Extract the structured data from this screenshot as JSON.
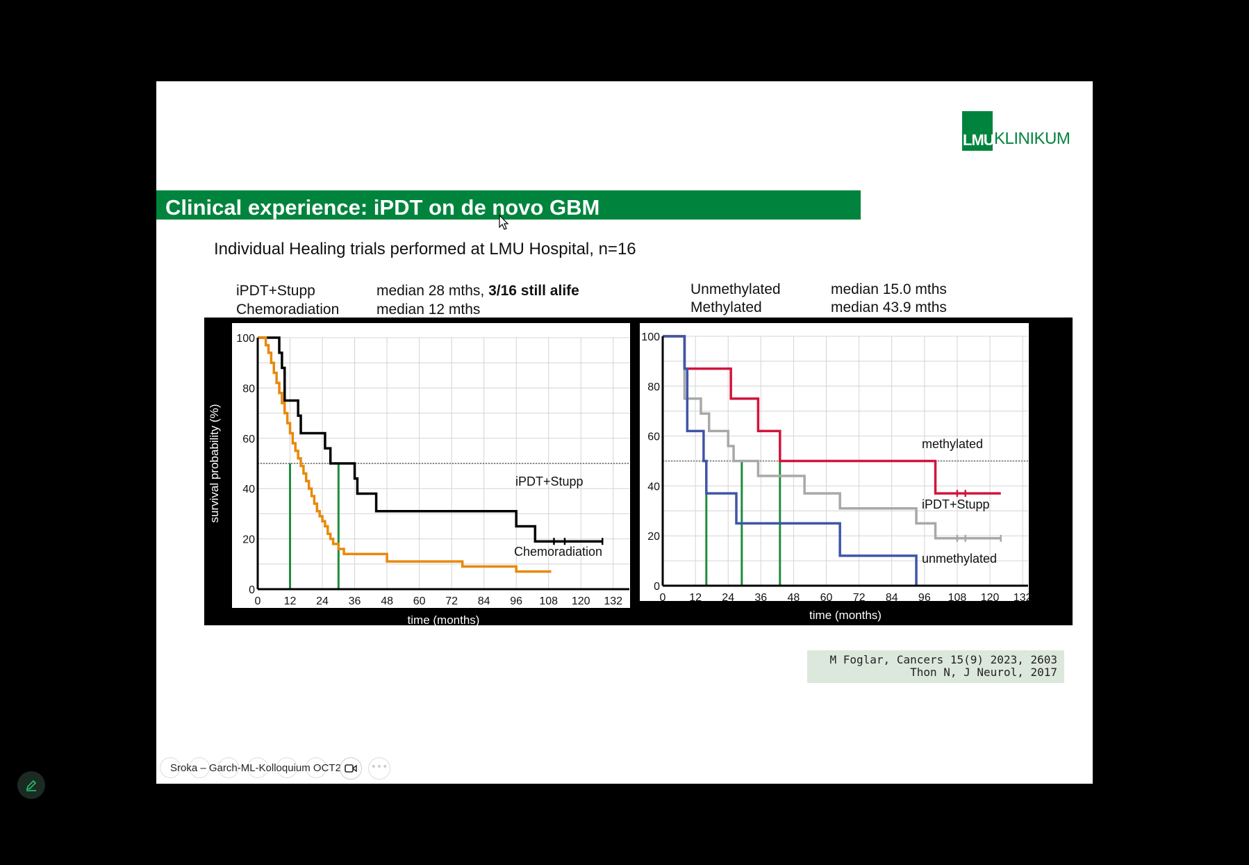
{
  "logo": {
    "box_text": "LMU",
    "word": "KLINIKUM"
  },
  "slide": {
    "title": "Clinical experience: iPDT on de novo GBM",
    "subtitle": "Individual Healing trials performed at LMU Hospital, n=16",
    "left_legend": {
      "row1_name": "iPDT+Stupp",
      "row1_value": "median 28 mths,",
      "row1_bold": "3/16 still alife",
      "row2_name": "Chemoradiation",
      "row2_value": "median 12 mths"
    },
    "right_legend": {
      "row1_name": "Unmethylated",
      "row1_value": "median 15.0 mths",
      "row2_name": "Methylated",
      "row2_value": "median 43.9 mths"
    },
    "citation": {
      "line1": "M Foglar, Cancers 15(9) 2023, 2603",
      "line2": "Thon N, J Neurol, 2017"
    }
  },
  "toolbar": {
    "label": "Sroka – Garch-ML-Kolloquium OCT2"
  },
  "colors": {
    "brand_green": "#00843D",
    "ipdt": "#000000",
    "chemo": "#E8890C",
    "methylated": "#D2143C",
    "unmethylated": "#3F55A8",
    "ipdt_gray": "#A8A8A8",
    "median_line": "#1E8C3C"
  },
  "chart_data": [
    {
      "type": "line",
      "step": true,
      "xlabel": "time (months)",
      "ylabel": "survival probability (%)",
      "xlim": [
        0,
        138
      ],
      "ylim": [
        0,
        100
      ],
      "xticks": [
        0,
        12,
        24,
        36,
        48,
        60,
        72,
        84,
        96,
        108,
        120,
        132
      ],
      "yticks": [
        0,
        20,
        40,
        60,
        80,
        100
      ],
      "reference_line_y": 50,
      "median_markers_x": [
        12,
        30
      ],
      "series": [
        {
          "name": "iPDT+Stupp",
          "color": "#000000",
          "censored_x": [
            110,
            114,
            128
          ],
          "x": [
            0,
            5,
            8,
            9,
            10,
            15,
            16,
            25,
            27,
            29,
            36,
            37,
            44,
            66,
            96,
            103,
            128
          ],
          "y": [
            100,
            100,
            94,
            88,
            75,
            69,
            62,
            56,
            50,
            50,
            44,
            38,
            31,
            31,
            25,
            19,
            19
          ]
        },
        {
          "name": "Chemoradiation",
          "color": "#E8890C",
          "censored_x": [],
          "x": [
            0,
            2,
            3,
            4,
            5,
            6,
            7,
            8,
            9,
            10,
            11,
            12,
            13,
            14,
            15,
            16,
            17,
            18,
            19,
            20,
            21,
            22,
            23,
            24,
            25,
            26,
            27,
            28,
            30,
            32,
            47,
            48,
            76,
            96,
            109
          ],
          "y": [
            100,
            100,
            97,
            94,
            90,
            86,
            82,
            78,
            74,
            70,
            66,
            62,
            58,
            55,
            52,
            49,
            46,
            43,
            40,
            37,
            34,
            31,
            29,
            27,
            25,
            22,
            20,
            18,
            16,
            14,
            14,
            11,
            9,
            7,
            7
          ]
        }
      ]
    },
    {
      "type": "line",
      "step": true,
      "xlabel": "time (months)",
      "ylabel": "survival probability (%)",
      "xlim": [
        0,
        134
      ],
      "ylim": [
        0,
        100
      ],
      "xticks": [
        0,
        12,
        24,
        36,
        48,
        60,
        72,
        84,
        96,
        108,
        120,
        132
      ],
      "yticks": [
        0,
        20,
        40,
        60,
        80,
        100
      ],
      "reference_line_y": 50,
      "median_markers_x": [
        16,
        29,
        43
      ],
      "annotations": [
        "methylated",
        "iPDT+Stupp",
        "unmethylated"
      ],
      "series": [
        {
          "name": "methylated",
          "color": "#D2143C",
          "censored_x": [
            108,
            111
          ],
          "x": [
            0,
            8,
            25,
            35,
            43,
            100,
            124
          ],
          "y": [
            100,
            87,
            75,
            62,
            50,
            37,
            37
          ]
        },
        {
          "name": "iPDT+Stupp",
          "color": "#A8A8A8",
          "censored_x": [
            108,
            111,
            124
          ],
          "x": [
            0,
            8,
            14,
            17,
            24,
            26,
            29,
            35,
            52,
            65,
            93,
            100,
            124
          ],
          "y": [
            100,
            75,
            69,
            62,
            56,
            50,
            50,
            44,
            37,
            31,
            25,
            19,
            19
          ]
        },
        {
          "name": "unmethylated",
          "color": "#3F55A8",
          "censored_x": [],
          "x": [
            0,
            8,
            9,
            15,
            16,
            27,
            65,
            93,
            93
          ],
          "y": [
            100,
            87,
            62,
            50,
            37,
            25,
            12,
            12,
            0
          ]
        }
      ]
    }
  ]
}
